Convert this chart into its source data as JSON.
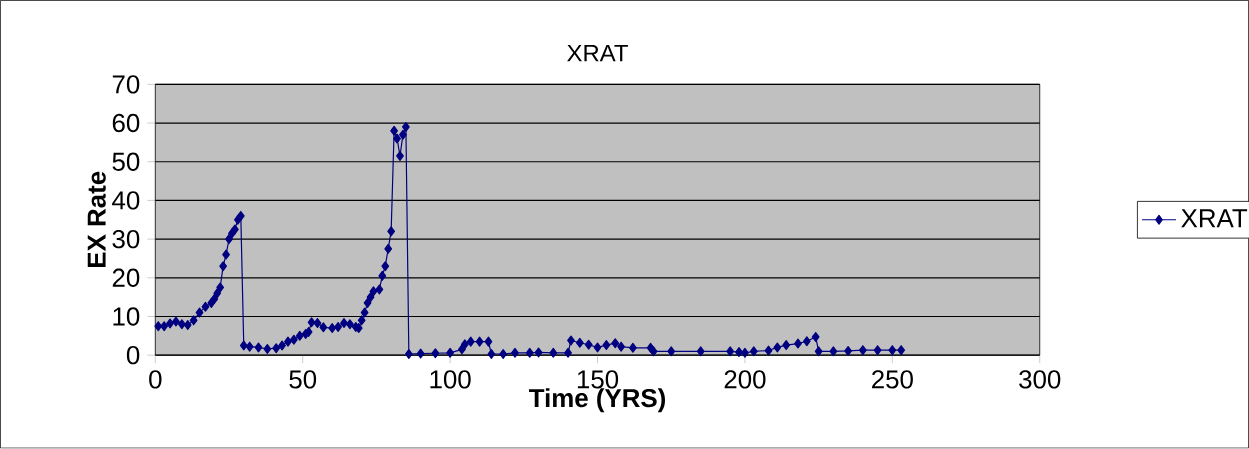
{
  "chart_data": {
    "type": "line",
    "title": "XRAT",
    "xlabel": "Time (YRS)",
    "ylabel": "EX Rate",
    "xlim": [
      0,
      300
    ],
    "xticks": [
      0,
      50,
      100,
      150,
      200,
      250,
      300
    ],
    "ylim": [
      0,
      70
    ],
    "yticks": [
      0,
      10,
      20,
      30,
      40,
      50,
      60,
      70
    ],
    "grid": "y",
    "legend": "right",
    "marker": "diamond",
    "line_style": "solid",
    "series": [
      {
        "name": "XRAT",
        "color": "#000080",
        "x": [
          1,
          3,
          5,
          7,
          9,
          11,
          13,
          15,
          17,
          19,
          20,
          21,
          22,
          23,
          24,
          25,
          26,
          27,
          28,
          29,
          30,
          32,
          35,
          38,
          41,
          43,
          45,
          47,
          49,
          51,
          52,
          53,
          55,
          57,
          60,
          62,
          64,
          66,
          68,
          69,
          70,
          71,
          72,
          73,
          74,
          76,
          77,
          78,
          79,
          80,
          81,
          82,
          83,
          84,
          85,
          86,
          90,
          95,
          100,
          104,
          105,
          107,
          110,
          113,
          114,
          118,
          122,
          127,
          130,
          135,
          140,
          141,
          144,
          147,
          150,
          153,
          156,
          158,
          162,
          168,
          169,
          175,
          185,
          195,
          198,
          200,
          203,
          208,
          211,
          214,
          218,
          221,
          224,
          225,
          230,
          235,
          240,
          245,
          250,
          253
        ],
        "values": [
          7.5,
          7.5,
          8.2,
          8.7,
          8.0,
          7.8,
          9.0,
          11,
          12.5,
          13.5,
          14.5,
          16,
          17.5,
          23,
          26,
          30,
          31.5,
          32.5,
          35,
          36,
          2.5,
          2.2,
          2.0,
          1.6,
          1.8,
          2.5,
          3.5,
          4.0,
          5.0,
          5.5,
          6.0,
          8.5,
          8.3,
          7.2,
          7.0,
          7.3,
          8.3,
          8.0,
          7.3,
          7.0,
          9.0,
          11,
          13.5,
          15,
          16.5,
          17,
          20.5,
          23,
          27.5,
          32,
          58,
          56,
          51.5,
          57,
          59,
          0.3,
          0.4,
          0.5,
          0.6,
          1.5,
          2.8,
          3.5,
          3.5,
          3.5,
          0.3,
          0.3,
          0.6,
          0.6,
          0.7,
          0.6,
          0.6,
          3.8,
          3.2,
          2.7,
          2.0,
          2.6,
          3.1,
          2.2,
          1.9,
          1.9,
          1.0,
          1.0,
          1.0,
          1.0,
          0.8,
          0.6,
          1.0,
          1.2,
          2.0,
          2.6,
          3.0,
          3.6,
          4.7,
          1.0,
          1.0,
          1.1,
          1.3,
          1.3,
          1.3,
          1.3
        ]
      }
    ]
  }
}
